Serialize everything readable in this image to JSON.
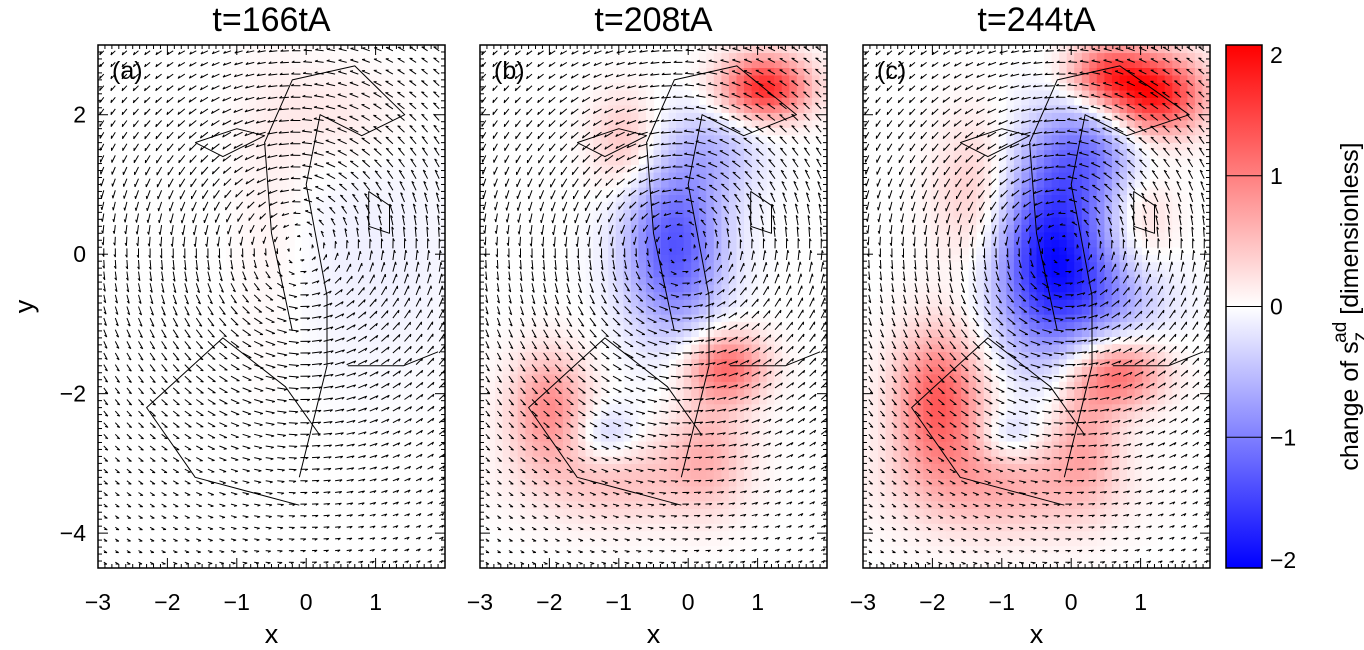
{
  "chart_data": {
    "type": "heatmap",
    "description_free": true,
    "x_ticks": [
      "−3",
      "−2",
      "−1",
      "0",
      "1"
    ],
    "x_tick_values": [
      -3,
      -2,
      -1,
      0,
      1
    ],
    "y_ticks": [
      "2",
      "0",
      "−2",
      "−4"
    ],
    "y_tick_values": [
      2,
      0,
      -2,
      -4
    ],
    "xlim": [
      -3,
      2
    ],
    "ylim": [
      -4.5,
      3
    ],
    "xlabel": "x",
    "ylabel": "y",
    "panels": [
      {
        "title": "t=166tA",
        "label": "(a)",
        "blobs": [
          {
            "x": 0.4,
            "y": 2.0,
            "sx": 0.7,
            "sy": 0.5,
            "v": 0.18
          },
          {
            "x": -0.5,
            "y": 0.6,
            "sx": 0.4,
            "sy": 1.6,
            "v": 0.12
          },
          {
            "x": 0.9,
            "y": -0.1,
            "sx": 1.0,
            "sy": 1.2,
            "v": -0.12
          }
        ]
      },
      {
        "title": "t=208tA",
        "label": "(b)",
        "blobs": [
          {
            "x": 1.1,
            "y": 2.4,
            "sx": 0.45,
            "sy": 0.32,
            "v": 1.7
          },
          {
            "x": -0.2,
            "y": 0.1,
            "sx": 0.5,
            "sy": 0.85,
            "v": -1.35
          },
          {
            "x": 0.4,
            "y": 1.5,
            "sx": 0.5,
            "sy": 0.5,
            "v": -0.45
          },
          {
            "x": -0.9,
            "y": 1.6,
            "sx": 0.35,
            "sy": 0.5,
            "v": 0.5
          },
          {
            "x": 0.55,
            "y": -1.6,
            "sx": 0.4,
            "sy": 0.35,
            "v": 1.15
          },
          {
            "x": -2.0,
            "y": -2.2,
            "sx": 0.4,
            "sy": 0.55,
            "v": 0.9
          },
          {
            "x": -1.0,
            "y": -3.2,
            "sx": 0.9,
            "sy": 0.45,
            "v": 0.5
          },
          {
            "x": -1.2,
            "y": -2.6,
            "sx": 0.35,
            "sy": 0.3,
            "v": -0.5
          },
          {
            "x": 0.3,
            "y": -2.8,
            "sx": 0.4,
            "sy": 0.6,
            "v": 0.5
          }
        ]
      },
      {
        "title": "t=244tA",
        "label": "(c)",
        "blobs": [
          {
            "x": 1.2,
            "y": 2.3,
            "sx": 0.5,
            "sy": 0.4,
            "v": 1.85
          },
          {
            "x": 0.5,
            "y": 2.6,
            "sx": 0.4,
            "sy": 0.3,
            "v": 1.2
          },
          {
            "x": -0.3,
            "y": 0.0,
            "sx": 0.6,
            "sy": 1.0,
            "v": -1.85
          },
          {
            "x": 0.3,
            "y": 1.5,
            "sx": 0.55,
            "sy": 0.55,
            "v": -0.8
          },
          {
            "x": 0.6,
            "y": -0.6,
            "sx": 0.6,
            "sy": 0.5,
            "v": -0.55
          },
          {
            "x": -1.3,
            "y": 0.8,
            "sx": 0.45,
            "sy": 0.8,
            "v": 0.55
          },
          {
            "x": 1.0,
            "y": 0.5,
            "sx": 0.35,
            "sy": 0.6,
            "v": 0.4
          },
          {
            "x": 0.7,
            "y": -1.7,
            "sx": 0.45,
            "sy": 0.35,
            "v": 1.1
          },
          {
            "x": -1.9,
            "y": -2.1,
            "sx": 0.45,
            "sy": 0.7,
            "v": 1.3
          },
          {
            "x": -1.0,
            "y": -3.3,
            "sx": 1.0,
            "sy": 0.5,
            "v": 0.65
          },
          {
            "x": -0.9,
            "y": -2.6,
            "sx": 0.3,
            "sy": 0.25,
            "v": -0.45
          },
          {
            "x": 0.2,
            "y": -2.5,
            "sx": 0.35,
            "sy": 0.7,
            "v": 0.6
          }
        ]
      }
    ],
    "colorbar": {
      "min": -2,
      "max": 2,
      "ticks": [
        "2",
        "1",
        "0",
        "−1",
        "−2"
      ],
      "tick_values": [
        2,
        1,
        0,
        -1,
        -2
      ],
      "label_prefix": "change of s",
      "label_sub": "z",
      "label_sup": "ad",
      "label_suffix": "  [dimensionless]",
      "colors": {
        "low": "#0000ff",
        "mid": "#ffffff",
        "high": "#ff0000"
      }
    }
  }
}
